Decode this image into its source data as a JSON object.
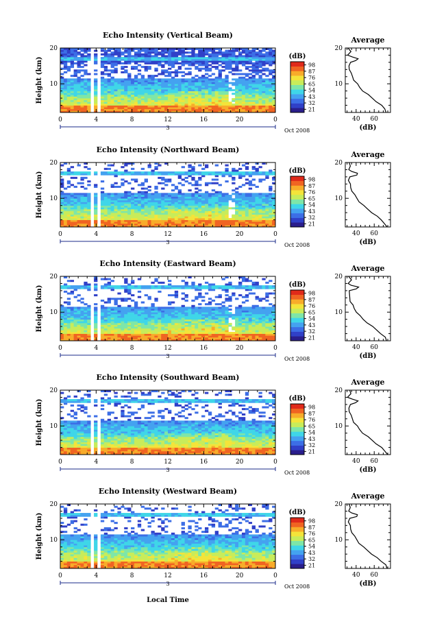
{
  "chart_data": {
    "type": "heatmap",
    "panels": [
      {
        "title": "Echo Intensity (Vertical Beam)"
      },
      {
        "title": "Echo Intensity (Northward Beam)"
      },
      {
        "title": "Echo Intensity (Eastward Beam)"
      },
      {
        "title": "Echo Intensity (Southward Beam)"
      },
      {
        "title": "Echo Intensity (Westward Beam)"
      }
    ],
    "ylabel": "Height (km)",
    "xlabel": "Local Time",
    "date_label": "Oct 2008",
    "day_label": "3",
    "x_ticks": [
      "0",
      "4",
      "8",
      "12",
      "16",
      "20",
      "0"
    ],
    "y_ticks": [
      "10",
      "20"
    ],
    "xlim": [
      0,
      24
    ],
    "ylim": [
      2,
      20
    ],
    "colorbar": {
      "unit": "(dB)",
      "levels": [
        "21",
        "32",
        "43",
        "54",
        "65",
        "76",
        "87",
        "98"
      ],
      "colors": [
        "#2a1e8c",
        "#3040c8",
        "#3c6ee6",
        "#44a2f0",
        "#3fd6e8",
        "#7ee6a8",
        "#c8ec5a",
        "#f4e43a",
        "#f8ac2a",
        "#f06422",
        "#e02a1a"
      ]
    },
    "average_profile": {
      "title": "Average",
      "xlabel": "(dB)",
      "x_ticks": [
        "40",
        "60"
      ],
      "y_ticks": [
        "10",
        "20"
      ],
      "xlim": [
        28,
        78
      ],
      "height_km": [
        2.0,
        3.0,
        4.0,
        5.0,
        6.0,
        7.0,
        8.0,
        9.0,
        10.0,
        11.0,
        12.0,
        13.0,
        14.0,
        15.0,
        16.0,
        16.5,
        17.0,
        17.5,
        18.0,
        19.0,
        20.0
      ],
      "intensity_db": [
        74,
        72,
        68,
        63,
        58,
        53,
        48,
        44,
        41,
        38,
        36,
        34,
        33,
        32,
        33,
        40,
        42,
        35,
        31,
        34,
        32
      ]
    }
  }
}
